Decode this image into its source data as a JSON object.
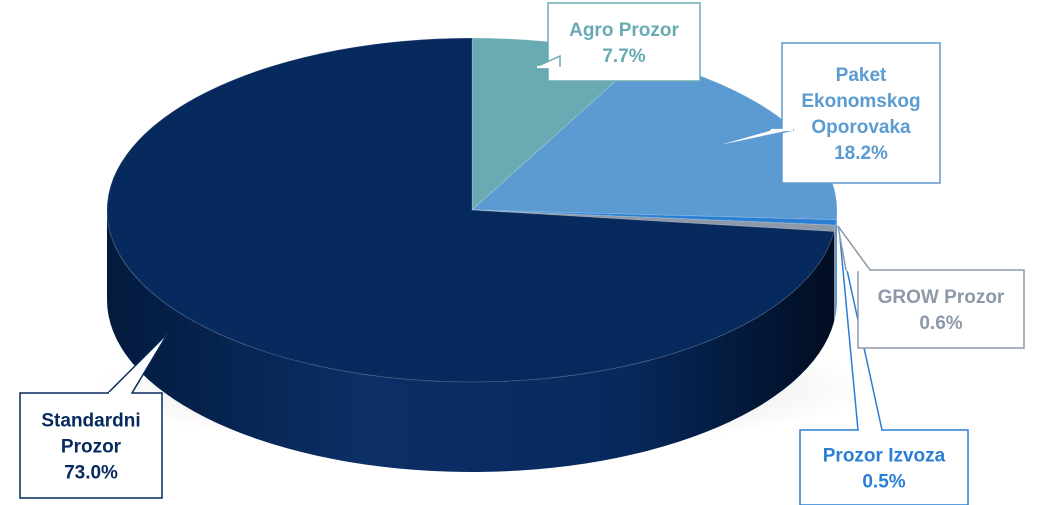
{
  "chart_data": {
    "type": "pie",
    "style": "3d",
    "categories": [
      "Agro Prozor",
      "Paket Ekonomskog Oporovaka",
      "Prozor Izvoza",
      "GROW Prozor",
      "Standardni Prozor"
    ],
    "values": [
      7.7,
      18.2,
      0.5,
      0.6,
      73.0
    ],
    "value_labels": [
      "7.7%",
      "18.2%",
      "0.5%",
      "0.6%",
      "73.0%"
    ],
    "label_lines": [
      [
        "Agro Prozor"
      ],
      [
        "Paket",
        "Ekonomskog",
        "Oporovaka"
      ],
      [
        "Prozor Izvoza"
      ],
      [
        "GROW Prozor"
      ],
      [
        "Standardni",
        "Prozor"
      ]
    ],
    "colors": [
      "#6aabb3",
      "#5b9bd1",
      "#2a7fd4",
      "#8d99a8",
      "#072a5e"
    ],
    "label_colors": [
      "#6aabb3",
      "#5b9bd1",
      "#2a7fd4",
      "#8d99a8",
      "#072a5e"
    ],
    "title": "",
    "legend": "none",
    "labels": "callouts"
  }
}
